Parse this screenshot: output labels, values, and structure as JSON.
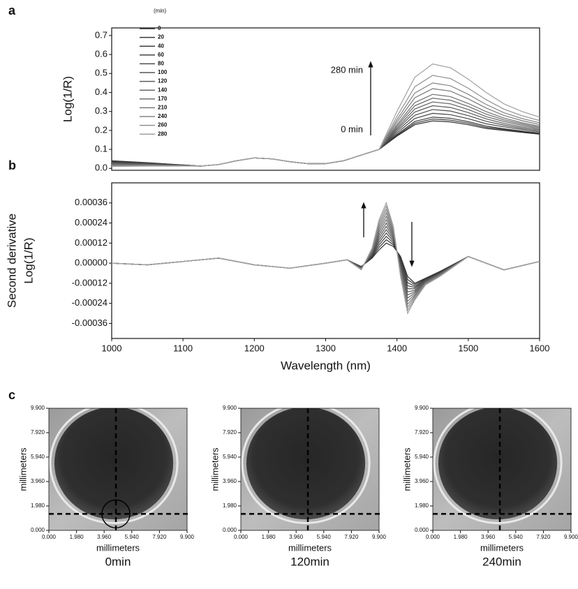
{
  "chart_data": [
    {
      "type": "line",
      "label": "a",
      "ylabel": "Log(1/R)",
      "legend_title": "(min)",
      "annotations": [
        "280 min",
        "0 min"
      ],
      "xlim": [
        1000,
        1600
      ],
      "ylim": [
        -0.01,
        0.74
      ],
      "yticks": [
        {
          "value": 0,
          "label": "0.0"
        },
        0.1,
        0.2,
        0.3,
        0.4,
        0.5,
        0.6,
        0.7
      ],
      "x": [
        1000,
        1025,
        1050,
        1075,
        1100,
        1125,
        1150,
        1175,
        1200,
        1225,
        1250,
        1275,
        1300,
        1325,
        1350,
        1375,
        1400,
        1425,
        1450,
        1475,
        1500,
        1525,
        1550,
        1575,
        1600
      ],
      "series": [
        {
          "name": "0",
          "color": "#2e2e2e",
          "values": [
            0.04,
            0.035,
            0.03,
            0.024,
            0.018,
            0.012,
            0.02,
            0.04,
            0.055,
            0.05,
            0.035,
            0.025,
            0.025,
            0.04,
            0.07,
            0.1,
            0.17,
            0.23,
            0.25,
            0.245,
            0.23,
            0.21,
            0.2,
            0.19,
            0.18
          ]
        },
        {
          "name": "20",
          "color": "#363636",
          "values": [
            0.038,
            0.033,
            0.029,
            0.023,
            0.018,
            0.012,
            0.02,
            0.04,
            0.055,
            0.05,
            0.035,
            0.025,
            0.025,
            0.04,
            0.07,
            0.1,
            0.174,
            0.238,
            0.26,
            0.254,
            0.238,
            0.216,
            0.205,
            0.194,
            0.183
          ]
        },
        {
          "name": "40",
          "color": "#3e3e3e",
          "values": [
            0.035,
            0.031,
            0.027,
            0.022,
            0.017,
            0.012,
            0.02,
            0.04,
            0.055,
            0.05,
            0.035,
            0.025,
            0.025,
            0.04,
            0.07,
            0.1,
            0.179,
            0.247,
            0.27,
            0.264,
            0.246,
            0.223,
            0.209,
            0.197,
            0.186
          ]
        },
        {
          "name": "60",
          "color": "#464646",
          "values": [
            0.033,
            0.029,
            0.026,
            0.021,
            0.017,
            0.012,
            0.02,
            0.04,
            0.055,
            0.05,
            0.035,
            0.025,
            0.025,
            0.04,
            0.07,
            0.1,
            0.187,
            0.263,
            0.29,
            0.283,
            0.262,
            0.235,
            0.219,
            0.205,
            0.192
          ]
        },
        {
          "name": "80",
          "color": "#4e4e4e",
          "values": [
            0.03,
            0.027,
            0.024,
            0.02,
            0.016,
            0.012,
            0.02,
            0.04,
            0.055,
            0.05,
            0.035,
            0.025,
            0.025,
            0.04,
            0.07,
            0.1,
            0.196,
            0.28,
            0.31,
            0.302,
            0.278,
            0.248,
            0.228,
            0.212,
            0.198
          ]
        },
        {
          "name": "100",
          "color": "#565656",
          "values": [
            0.028,
            0.025,
            0.023,
            0.019,
            0.016,
            0.012,
            0.02,
            0.04,
            0.055,
            0.05,
            0.035,
            0.025,
            0.025,
            0.04,
            0.07,
            0.1,
            0.205,
            0.297,
            0.33,
            0.321,
            0.294,
            0.261,
            0.237,
            0.219,
            0.204
          ]
        },
        {
          "name": "120",
          "color": "#5e5e5e",
          "values": [
            0.025,
            0.023,
            0.021,
            0.018,
            0.015,
            0.012,
            0.02,
            0.04,
            0.055,
            0.05,
            0.035,
            0.025,
            0.025,
            0.04,
            0.07,
            0.1,
            0.213,
            0.313,
            0.35,
            0.34,
            0.31,
            0.273,
            0.247,
            0.227,
            0.21
          ]
        },
        {
          "name": "140",
          "color": "#676767",
          "values": [
            0.023,
            0.021,
            0.02,
            0.017,
            0.015,
            0.012,
            0.02,
            0.04,
            0.055,
            0.05,
            0.035,
            0.025,
            0.025,
            0.04,
            0.07,
            0.1,
            0.222,
            0.33,
            0.37,
            0.359,
            0.326,
            0.286,
            0.256,
            0.234,
            0.216
          ]
        },
        {
          "name": "170",
          "color": "#707070",
          "values": [
            0.02,
            0.019,
            0.018,
            0.016,
            0.014,
            0.012,
            0.02,
            0.04,
            0.055,
            0.05,
            0.035,
            0.025,
            0.025,
            0.04,
            0.07,
            0.1,
            0.231,
            0.347,
            0.39,
            0.378,
            0.342,
            0.299,
            0.265,
            0.241,
            0.222
          ]
        },
        {
          "name": "210",
          "color": "#7a7a7a",
          "values": [
            0.018,
            0.017,
            0.017,
            0.015,
            0.014,
            0.012,
            0.02,
            0.04,
            0.055,
            0.05,
            0.035,
            0.025,
            0.025,
            0.04,
            0.07,
            0.1,
            0.244,
            0.372,
            0.42,
            0.407,
            0.366,
            0.318,
            0.279,
            0.252,
            0.231
          ]
        },
        {
          "name": "240",
          "color": "#858585",
          "values": [
            0.015,
            0.015,
            0.015,
            0.014,
            0.013,
            0.012,
            0.02,
            0.04,
            0.055,
            0.05,
            0.035,
            0.025,
            0.025,
            0.04,
            0.07,
            0.1,
            0.257,
            0.397,
            0.45,
            0.435,
            0.39,
            0.337,
            0.293,
            0.263,
            0.24
          ]
        },
        {
          "name": "260",
          "color": "#909090",
          "values": [
            0.013,
            0.013,
            0.014,
            0.013,
            0.013,
            0.012,
            0.02,
            0.04,
            0.055,
            0.05,
            0.035,
            0.025,
            0.025,
            0.04,
            0.07,
            0.1,
            0.274,
            0.43,
            0.49,
            0.473,
            0.422,
            0.362,
            0.312,
            0.278,
            0.252
          ]
        },
        {
          "name": "280",
          "color": "#a0a0a0",
          "values": [
            0.01,
            0.011,
            0.012,
            0.012,
            0.012,
            0.012,
            0.02,
            0.04,
            0.055,
            0.05,
            0.035,
            0.025,
            0.025,
            0.04,
            0.07,
            0.1,
            0.3,
            0.48,
            0.55,
            0.53,
            0.47,
            0.4,
            0.34,
            0.3,
            0.27
          ]
        }
      ]
    },
    {
      "type": "line",
      "label": "b",
      "ylabel": [
        "Second derivative",
        "Log(1/R)"
      ],
      "xlabel": "Wavelength (nm)",
      "xlim": [
        1000,
        1600
      ],
      "xticks": [
        1000,
        1100,
        1200,
        1300,
        1400,
        1500,
        1600
      ],
      "ylim": [
        -0.00045,
        0.00048
      ],
      "yticks": [
        -0.00036,
        -0.00024,
        -0.00012,
        {
          "value": 0,
          "label": "0.00000"
        },
        0.00012,
        0.00024,
        0.00036
      ],
      "x": [
        1000,
        1050,
        1100,
        1150,
        1200,
        1250,
        1300,
        1330,
        1350,
        1365,
        1375,
        1385,
        1395,
        1405,
        1415,
        1425,
        1440,
        1460,
        1500,
        1550,
        1600
      ],
      "series": [
        {
          "color": "#2e2e2e",
          "values": [
            0,
            -1e-05,
            1e-05,
            3e-05,
            -1e-05,
            -3e-05,
            0,
            2e-05,
            -2e-05,
            3e-05,
            8e-05,
            0.00012,
            0.0001,
            4e-05,
            -8e-05,
            -0.00012,
            -9e-05,
            -5e-05,
            4e-05,
            -4e-05,
            1e-05
          ]
        },
        {
          "color": "#363636",
          "values": [
            0,
            -1e-05,
            1e-05,
            3e-05,
            -1e-05,
            -3e-05,
            0,
            2e-05,
            -2.2e-05,
            3.5e-05,
            9.5e-05,
            0.00014,
            0.00011,
            3e-05,
            -9.8e-05,
            -0.000128,
            -9.3e-05,
            -5.3e-05,
            4e-05,
            -4e-05,
            1e-05
          ]
        },
        {
          "color": "#3e3e3e",
          "values": [
            0,
            -1e-05,
            1e-05,
            3e-05,
            -1e-05,
            -3e-05,
            0,
            2e-05,
            -2.3e-05,
            4e-05,
            0.00011,
            0.00016,
            0.00012,
            2e-05,
            -0.000117,
            -0.000137,
            -9.7e-05,
            -5.5e-05,
            4e-05,
            -4e-05,
            1e-05
          ]
        },
        {
          "color": "#464646",
          "values": [
            0,
            -1e-05,
            1e-05,
            3e-05,
            -1e-05,
            -3e-05,
            0,
            2e-05,
            -2.5e-05,
            4.5e-05,
            0.000125,
            0.00018,
            0.00013,
            1e-05,
            -0.000135,
            -0.000145,
            -0.0001,
            -5.8e-05,
            4e-05,
            -4e-05,
            1e-05
          ]
        },
        {
          "color": "#4e4e4e",
          "values": [
            0,
            -1e-05,
            1e-05,
            3e-05,
            -1e-05,
            -3e-05,
            0,
            2e-05,
            -2.7e-05,
            5e-05,
            0.00014,
            0.0002,
            0.00014,
            0,
            -0.000153,
            -0.000153,
            -0.000103,
            -6e-05,
            4e-05,
            -4e-05,
            1e-05
          ]
        },
        {
          "color": "#565656",
          "values": [
            0,
            -1e-05,
            1e-05,
            3e-05,
            -1e-05,
            -3e-05,
            0,
            2e-05,
            -2.8e-05,
            5.5e-05,
            0.000155,
            0.00022,
            0.00015,
            -1e-05,
            -0.000172,
            -0.000162,
            -0.000107,
            -6.3e-05,
            4e-05,
            -4e-05,
            1e-05
          ]
        },
        {
          "color": "#5e5e5e",
          "values": [
            0,
            -1e-05,
            1e-05,
            3e-05,
            -1e-05,
            -3e-05,
            0,
            2e-05,
            -3e-05,
            6e-05,
            0.00017,
            0.00024,
            0.00016,
            -2e-05,
            -0.00019,
            -0.00017,
            -0.00011,
            -6.5e-05,
            4e-05,
            -4e-05,
            1e-05
          ]
        },
        {
          "color": "#676767",
          "values": [
            0,
            -1e-05,
            1e-05,
            3e-05,
            -1e-05,
            -3e-05,
            0,
            2e-05,
            -3.2e-05,
            6.5e-05,
            0.000185,
            0.00026,
            0.00017,
            -3e-05,
            -0.000208,
            -0.000178,
            -0.000113,
            -6.8e-05,
            4e-05,
            -4e-05,
            1e-05
          ]
        },
        {
          "color": "#707070",
          "values": [
            0,
            -1e-05,
            1e-05,
            3e-05,
            -1e-05,
            -3e-05,
            0,
            2e-05,
            -3.3e-05,
            7e-05,
            0.0002,
            0.00028,
            0.00018,
            -4e-05,
            -0.000227,
            -0.000187,
            -0.000117,
            -7e-05,
            4e-05,
            -4e-05,
            1e-05
          ]
        },
        {
          "color": "#7a7a7a",
          "values": [
            0,
            -1e-05,
            1e-05,
            3e-05,
            -1e-05,
            -3e-05,
            0,
            2e-05,
            -3.5e-05,
            7.5e-05,
            0.000215,
            0.0003,
            0.00019,
            -5e-05,
            -0.000245,
            -0.000195,
            -0.00012,
            -7.3e-05,
            4e-05,
            -4e-05,
            1e-05
          ]
        },
        {
          "color": "#858585",
          "values": [
            0,
            -1e-05,
            1e-05,
            3e-05,
            -1e-05,
            -3e-05,
            0,
            2e-05,
            -3.7e-05,
            8e-05,
            0.00023,
            0.00032,
            0.0002,
            -6e-05,
            -0.000263,
            -0.000203,
            -0.000123,
            -7.5e-05,
            4e-05,
            -4e-05,
            1e-05
          ]
        },
        {
          "color": "#909090",
          "values": [
            0,
            -1e-05,
            1e-05,
            3e-05,
            -1e-05,
            -3e-05,
            0,
            2e-05,
            -3.8e-05,
            8.5e-05,
            0.000245,
            0.00034,
            0.00021,
            -7e-05,
            -0.000282,
            -0.000212,
            -0.000127,
            -7.8e-05,
            4e-05,
            -4e-05,
            1e-05
          ]
        },
        {
          "color": "#a0a0a0",
          "values": [
            0,
            -1e-05,
            1e-05,
            3e-05,
            -1e-05,
            -3e-05,
            0,
            2e-05,
            -4e-05,
            9e-05,
            0.00026,
            0.00036,
            0.00022,
            -8e-05,
            -0.0003,
            -0.00022,
            -0.00013,
            -8e-05,
            4e-05,
            -4e-05,
            1e-05
          ]
        }
      ]
    },
    {
      "type": "image",
      "label": "c",
      "title": "0min",
      "xlabel": "millimeters",
      "ylabel": "millimeters",
      "xlim": [
        0,
        9.9
      ],
      "ylim": [
        0,
        9.9
      ],
      "xticks": [
        {
          "value": 0,
          "label": "0.000"
        },
        {
          "value": 1.98,
          "label": "1.980"
        },
        {
          "value": 3.96,
          "label": "3.960"
        },
        {
          "value": 5.94,
          "label": "5.940"
        },
        {
          "value": 7.92,
          "label": "7.920"
        },
        {
          "value": 9.9,
          "label": "9.900"
        }
      ],
      "yticks": [
        {
          "value": 0,
          "label": "0.000"
        },
        {
          "value": 1.98,
          "label": "1.980"
        },
        {
          "value": 3.96,
          "label": "3.960"
        },
        {
          "value": 5.94,
          "label": "5.940"
        },
        {
          "value": 7.92,
          "label": "7.920"
        },
        {
          "value": 9.9,
          "label": "9.900"
        }
      ]
    },
    {
      "type": "image",
      "title": "120min",
      "xlabel": "millimeters",
      "ylabel": "millimeters",
      "xlim": [
        0,
        9.9
      ],
      "ylim": [
        0,
        9.9
      ],
      "xticks": [
        {
          "value": 0,
          "label": "0.000"
        },
        {
          "value": 1.98,
          "label": "1.980"
        },
        {
          "value": 3.96,
          "label": "3.960"
        },
        {
          "value": 5.94,
          "label": "5.940"
        },
        {
          "value": 7.92,
          "label": "7.920"
        },
        {
          "value": 9.9,
          "label": "9.900"
        }
      ],
      "yticks": [
        {
          "value": 0,
          "label": "0.000"
        },
        {
          "value": 1.98,
          "label": "1.980"
        },
        {
          "value": 3.96,
          "label": "3.960"
        },
        {
          "value": 5.94,
          "label": "5.940"
        },
        {
          "value": 7.92,
          "label": "7.920"
        },
        {
          "value": 9.9,
          "label": "9.900"
        }
      ]
    },
    {
      "type": "image",
      "title": "240min",
      "xlabel": "millimeters",
      "ylabel": "millimeters",
      "xlim": [
        0,
        9.9
      ],
      "ylim": [
        0,
        9.9
      ],
      "xticks": [
        {
          "value": 0,
          "label": "0.000"
        },
        {
          "value": 1.98,
          "label": "1.980"
        },
        {
          "value": 3.96,
          "label": "3.960"
        },
        {
          "value": 5.94,
          "label": "5.940"
        },
        {
          "value": 7.92,
          "label": "7.920"
        },
        {
          "value": 9.9,
          "label": "9.900"
        }
      ],
      "yticks": [
        {
          "value": 0,
          "label": "0.000"
        },
        {
          "value": 1.98,
          "label": "1.980"
        },
        {
          "value": 3.96,
          "label": "3.960"
        },
        {
          "value": 5.94,
          "label": "5.940"
        },
        {
          "value": 7.92,
          "label": "7.920"
        },
        {
          "value": 9.9,
          "label": "9.900"
        }
      ]
    }
  ]
}
